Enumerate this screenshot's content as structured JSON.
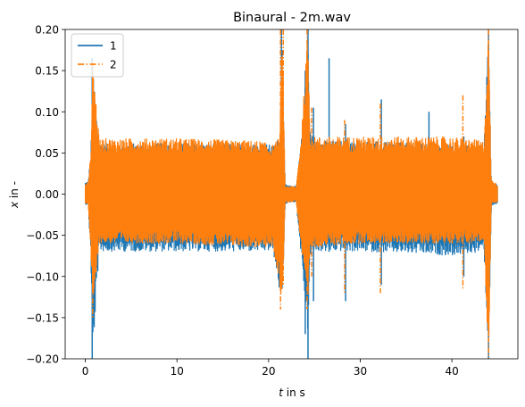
{
  "chart_data": {
    "type": "line",
    "title": "Binaural - 2m.wav",
    "xlabel": {
      "var": "t",
      "rest": " in s"
    },
    "ylabel": {
      "var": "x",
      "rest": " in -"
    },
    "xlim": [
      -2.2,
      47.2
    ],
    "ylim": [
      -0.2,
      0.2
    ],
    "xticks": [
      0,
      10,
      20,
      30,
      40
    ],
    "yticks": [
      -0.2,
      -0.15,
      -0.1,
      -0.05,
      0.0,
      0.05,
      0.1,
      0.15,
      0.2
    ],
    "ytick_labels": [
      "−0.20",
      "−0.15",
      "−0.10",
      "−0.05",
      "0.00",
      "0.05",
      "0.10",
      "0.15",
      "0.20"
    ],
    "grid": false,
    "legend_position": "top-left",
    "series": [
      {
        "name": "1",
        "color": "#1f77b4",
        "style": "solid",
        "envelope": {
          "x": [
            0.0,
            0.3,
            0.6,
            0.8,
            1.5,
            10,
            19,
            20.5,
            21.2,
            21.5,
            21.8,
            22.5,
            23.0,
            23.5,
            24.3,
            24.5,
            25,
            30,
            40,
            43.5,
            44.0,
            44.3,
            45.0
          ],
          "max": [
            0.015,
            0.016,
            0.05,
            0.15,
            0.062,
            0.062,
            0.062,
            0.06,
            0.07,
            0.2,
            0.012,
            0.01,
            0.01,
            0.06,
            0.2,
            0.08,
            0.065,
            0.065,
            0.06,
            0.06,
            0.2,
            0.015,
            0.012
          ],
          "min": [
            -0.013,
            -0.013,
            -0.08,
            -0.2,
            -0.07,
            -0.07,
            -0.07,
            -0.07,
            -0.12,
            -0.13,
            -0.012,
            -0.01,
            -0.01,
            -0.07,
            -0.17,
            -0.08,
            -0.07,
            -0.07,
            -0.075,
            -0.07,
            -0.2,
            -0.015,
            -0.012
          ]
        }
      },
      {
        "name": "2",
        "color": "#ff7f0e",
        "style": "dashdot",
        "envelope": {
          "x": [
            0.0,
            0.3,
            0.6,
            0.8,
            1.5,
            10,
            19,
            20.5,
            21.2,
            21.5,
            21.8,
            22.5,
            23.0,
            23.5,
            24.3,
            24.5,
            25,
            30,
            40,
            43.5,
            44.0,
            44.3,
            45.0
          ],
          "max": [
            0.012,
            0.015,
            0.05,
            0.165,
            0.068,
            0.068,
            0.065,
            0.06,
            0.07,
            0.2,
            0.01,
            0.01,
            0.009,
            0.065,
            0.2,
            0.075,
            0.07,
            0.07,
            0.07,
            0.065,
            0.2,
            0.018,
            0.012
          ],
          "min": [
            -0.012,
            -0.012,
            -0.07,
            -0.15,
            -0.06,
            -0.06,
            -0.065,
            -0.065,
            -0.11,
            -0.14,
            -0.01,
            -0.01,
            -0.009,
            -0.06,
            -0.14,
            -0.07,
            -0.065,
            -0.06,
            -0.06,
            -0.06,
            -0.2,
            -0.012,
            -0.01
          ]
        }
      }
    ],
    "spikes": [
      {
        "series": "1",
        "x": 0.75,
        "lo": -0.2,
        "hi": 0.165
      },
      {
        "series": "1",
        "x": 21.4,
        "lo": -0.115,
        "hi": 0.2
      },
      {
        "series": "1",
        "x": 24.0,
        "lo": -0.17,
        "hi": 0.15
      },
      {
        "series": "1",
        "x": 24.3,
        "lo": -0.2,
        "hi": 0.2
      },
      {
        "series": "1",
        "x": 24.9,
        "lo": -0.13,
        "hi": 0.105
      },
      {
        "series": "1",
        "x": 26.6,
        "lo": -0.07,
        "hi": 0.165
      },
      {
        "series": "1",
        "x": 28.4,
        "lo": -0.13,
        "hi": 0.085
      },
      {
        "series": "1",
        "x": 32.3,
        "lo": -0.11,
        "hi": 0.115
      },
      {
        "series": "1",
        "x": 37.5,
        "lo": -0.07,
        "hi": 0.1
      },
      {
        "series": "1",
        "x": 41.3,
        "lo": -0.1,
        "hi": 0.07
      },
      {
        "series": "1",
        "x": 44.0,
        "lo": -0.2,
        "hi": 0.2
      },
      {
        "series": "2",
        "x": 0.8,
        "lo": -0.15,
        "hi": 0.16
      },
      {
        "series": "2",
        "x": 21.3,
        "lo": -0.14,
        "hi": 0.2
      },
      {
        "series": "2",
        "x": 21.6,
        "lo": -0.11,
        "hi": 0.2
      },
      {
        "series": "2",
        "x": 24.2,
        "lo": -0.14,
        "hi": 0.2
      },
      {
        "series": "2",
        "x": 24.7,
        "lo": -0.1,
        "hi": 0.105
      },
      {
        "series": "2",
        "x": 28.3,
        "lo": -0.12,
        "hi": 0.09
      },
      {
        "series": "2",
        "x": 32.2,
        "lo": -0.12,
        "hi": 0.11
      },
      {
        "series": "2",
        "x": 41.2,
        "lo": -0.115,
        "hi": 0.12
      },
      {
        "series": "2",
        "x": 44.0,
        "lo": -0.2,
        "hi": 0.2
      }
    ]
  }
}
